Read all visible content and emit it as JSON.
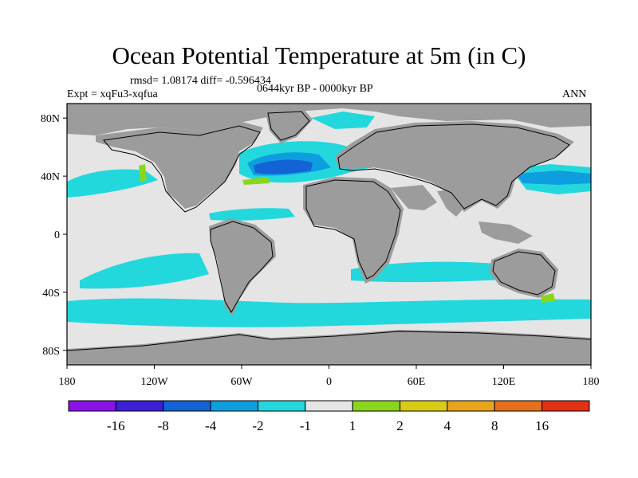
{
  "header": {
    "title": "Ocean Potential Temperature at 5m (in C)",
    "stats": "rmsd= 1.08174 diff= -0.596434",
    "experiment": "Expt = xqFu3-xqfua",
    "period": "0644kyr BP - 0000kyr BP",
    "season": "ANN"
  },
  "chart_data": {
    "type": "heatmap",
    "title": "Ocean Potential Temperature at 5m (in C)",
    "xlabel": "",
    "ylabel": "",
    "x_range": [
      -180,
      180
    ],
    "y_range": [
      -90,
      90
    ],
    "x_ticks": [
      {
        "value": -180,
        "label": "180"
      },
      {
        "value": -120,
        "label": "120W"
      },
      {
        "value": -60,
        "label": "60W"
      },
      {
        "value": 0,
        "label": "0"
      },
      {
        "value": 60,
        "label": "60E"
      },
      {
        "value": 120,
        "label": "120E"
      },
      {
        "value": 180,
        "label": "180"
      }
    ],
    "y_ticks": [
      {
        "value": 80,
        "label": "80N"
      },
      {
        "value": 40,
        "label": "40N"
      },
      {
        "value": 0,
        "label": "0"
      },
      {
        "value": -40,
        "label": "40S"
      },
      {
        "value": -80,
        "label": "80S"
      }
    ],
    "colorbar": {
      "bins": [
        "#8a12e6",
        "#3d1fd6",
        "#1463d6",
        "#0e9ee0",
        "#23d8dc",
        "#e5e5e5",
        "#8ad61c",
        "#d8cc12",
        "#e8a41c",
        "#e6701c",
        "#e23012"
      ],
      "boundaries": [
        "-16",
        "-8",
        "-4",
        "-2",
        "-1",
        "1",
        "2",
        "4",
        "8",
        "16"
      ]
    },
    "colors": {
      "land": "#9c9c9c",
      "ocean_neutral": "#e5e5e5",
      "cool": "#23d8dc",
      "cooler": "#0e9ee0",
      "coolest": "#1463d6",
      "warm": "#8ad61c"
    }
  }
}
